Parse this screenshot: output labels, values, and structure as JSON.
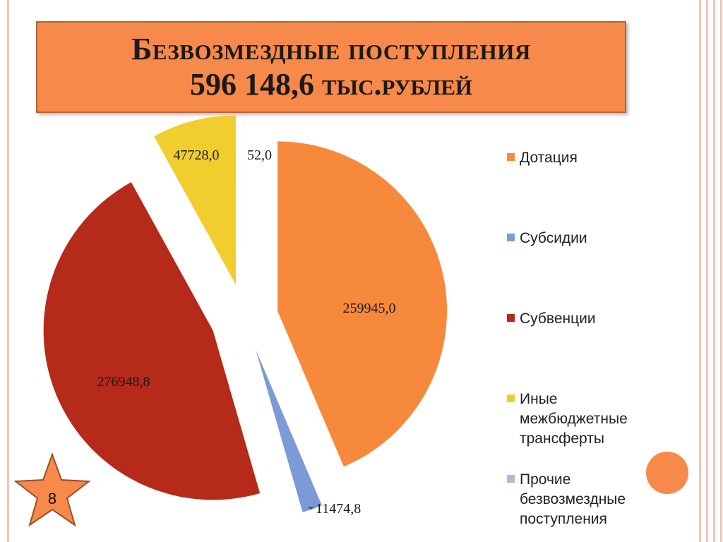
{
  "title": {
    "line1": "Безвозмездные поступления",
    "line2": "596 148,6 тыс.рублей"
  },
  "slide_number": "8",
  "colors": {
    "accent": "#f7894a",
    "dotation": "#f7893c",
    "subsidies": "#7b9ad6",
    "subventions": "#b52a18",
    "other_transfers": "#f2cd2e",
    "other_receipts": "#a9bbe0"
  },
  "chart_data": {
    "type": "pie",
    "title": "",
    "legend_position": "right",
    "slices": [
      {
        "name": "Дотация",
        "value": 259945.0,
        "label": "259945,0",
        "color": "#f7893c"
      },
      {
        "name": "Субсидии",
        "value": 11474.8,
        "label": "11474,8",
        "color": "#7b9ad6"
      },
      {
        "name": "Субвенции",
        "value": 276948.8,
        "label": "276948,8",
        "color": "#b52a18"
      },
      {
        "name": "Иные межбюджетные трансферты",
        "value": 47728.0,
        "label": "47728,0",
        "color": "#f2cd2e"
      },
      {
        "name": "Прочие безвозмездные поступления",
        "value": 52.0,
        "label": "52,0",
        "color": "#a9bbe0"
      }
    ]
  },
  "legend": [
    {
      "label": "Дотация",
      "color": "#f7893c"
    },
    {
      "label": "Субсидии",
      "color": "#7b9ad6"
    },
    {
      "label": "Субвенции",
      "color": "#b52a18"
    },
    {
      "label": "Иные межбюджетные трансферты",
      "color": "#f2cd2e"
    },
    {
      "label": "Прочие безвозмездные поступления",
      "color": "#a9bbe0"
    }
  ]
}
